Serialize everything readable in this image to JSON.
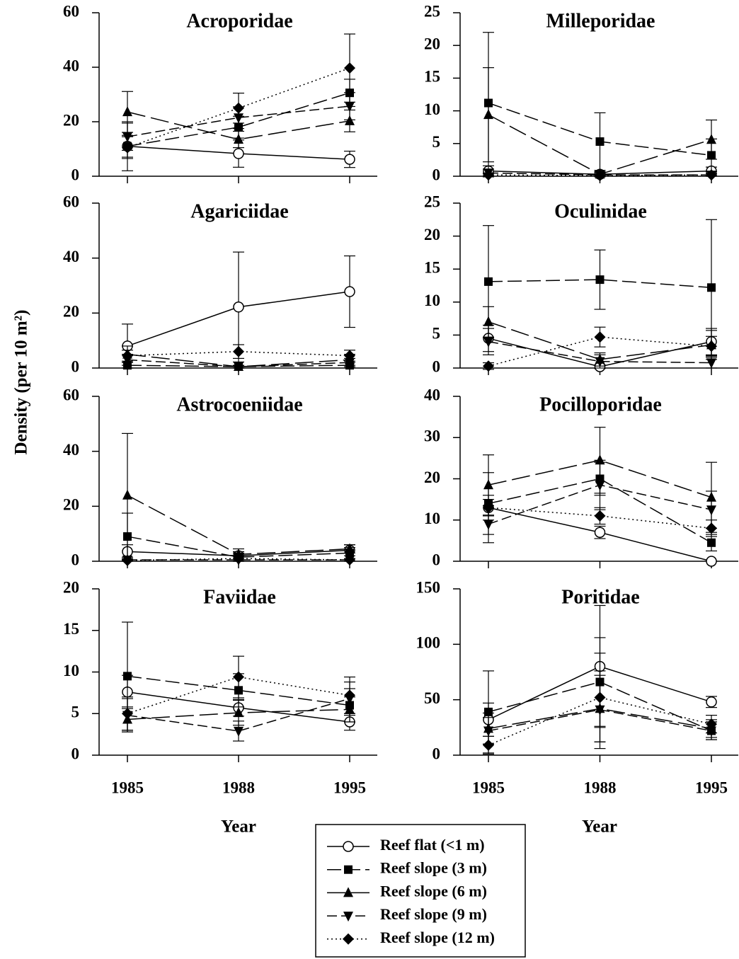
{
  "ylabel": "Density (per 10 m²)",
  "xlabel": "Year",
  "chart_data": [
    {
      "type": "line",
      "title": "Acroporidae",
      "categories": [
        "1985",
        "1988",
        "1995"
      ],
      "ylim": [
        0,
        60
      ],
      "yticks": [
        0,
        20,
        40,
        60
      ],
      "series": [
        {
          "name": "Reef flat (<1 m)",
          "color": "#000",
          "marker": "circle-open",
          "dash": "solid",
          "values": [
            11,
            8.3,
            6.2
          ],
          "errors": [
            9,
            5,
            3
          ]
        },
        {
          "name": "Reef slope (3 m)",
          "color": "#000",
          "marker": "square",
          "dash": "dash",
          "values": [
            11,
            18,
            30.6
          ],
          "errors": [
            4,
            4,
            5
          ]
        },
        {
          "name": "Reef slope (6 m)",
          "color": "#000",
          "marker": "triangle",
          "dash": "long-dash",
          "values": [
            23.6,
            13.5,
            20.3
          ],
          "errors": [
            7.5,
            3,
            4
          ]
        },
        {
          "name": "Reef slope (9 m)",
          "color": "#000",
          "marker": "triangle-down",
          "dash": "medium-dash",
          "values": [
            14.5,
            21.5,
            25.7
          ],
          "errors": [
            5,
            4,
            5
          ]
        },
        {
          "name": "Reef slope (12 m)",
          "color": "#000",
          "marker": "diamond",
          "dash": "dot",
          "values": [
            10.5,
            25,
            39.7
          ],
          "errors": [
            4,
            5.5,
            12.5
          ]
        }
      ]
    },
    {
      "type": "line",
      "title": "Milleporidae",
      "categories": [
        "1985",
        "1988",
        "1995"
      ],
      "ylim": [
        0,
        25
      ],
      "yticks": [
        0,
        5,
        10,
        15,
        20,
        25
      ],
      "series": [
        {
          "name": "Reef flat (<1 m)",
          "color": "#000",
          "marker": "circle-open",
          "dash": "solid",
          "values": [
            0.8,
            0.3,
            0.8
          ],
          "errors": [
            0.8,
            0.3,
            0.6
          ]
        },
        {
          "name": "Reef slope (3 m)",
          "color": "#000",
          "marker": "square",
          "dash": "dash",
          "values": [
            11.2,
            5.3,
            3.2
          ],
          "errors": [
            10.8,
            4.4,
            2.5
          ]
        },
        {
          "name": "Reef slope (6 m)",
          "color": "#000",
          "marker": "triangle",
          "dash": "long-dash",
          "values": [
            9.4,
            0.3,
            5.6
          ],
          "errors": [
            7.2,
            0.4,
            3
          ]
        },
        {
          "name": "Reef slope (9 m)",
          "color": "#000",
          "marker": "triangle-down",
          "dash": "medium-dash",
          "values": [
            0.5,
            0.2,
            0.2
          ],
          "errors": [
            0.6,
            0.2,
            0.2
          ]
        },
        {
          "name": "Reef slope (12 m)",
          "color": "#000",
          "marker": "diamond",
          "dash": "dot",
          "values": [
            0.2,
            0.1,
            0.2
          ],
          "errors": [
            0.3,
            0.1,
            0.2
          ]
        }
      ]
    },
    {
      "type": "line",
      "title": "Agariciidae",
      "categories": [
        "1985",
        "1988",
        "1995"
      ],
      "ylim": [
        0,
        60
      ],
      "yticks": [
        0,
        20,
        40,
        60
      ],
      "series": [
        {
          "name": "Reef flat (<1 m)",
          "color": "#000",
          "marker": "circle-open",
          "dash": "solid",
          "values": [
            8,
            22.2,
            27.8
          ],
          "errors": [
            8,
            20,
            13
          ]
        },
        {
          "name": "Reef slope (3 m)",
          "color": "#000",
          "marker": "square",
          "dash": "dash",
          "values": [
            1,
            0.5,
            1
          ],
          "errors": [
            1,
            0.5,
            1
          ]
        },
        {
          "name": "Reef slope (6 m)",
          "color": "#000",
          "marker": "triangle",
          "dash": "long-dash",
          "values": [
            5,
            0.5,
            3
          ],
          "errors": [
            3,
            0.5,
            2
          ]
        },
        {
          "name": "Reef slope (9 m)",
          "color": "#000",
          "marker": "triangle-down",
          "dash": "medium-dash",
          "values": [
            3,
            0.5,
            2
          ],
          "errors": [
            2,
            0.5,
            1.5
          ]
        },
        {
          "name": "Reef slope (12 m)",
          "color": "#000",
          "marker": "diamond",
          "dash": "dot",
          "values": [
            4.5,
            6,
            4.5
          ],
          "errors": [
            2,
            2.5,
            2
          ]
        }
      ]
    },
    {
      "type": "line",
      "title": "Oculinidae",
      "categories": [
        "1985",
        "1988",
        "1995"
      ],
      "ylim": [
        0,
        25
      ],
      "yticks": [
        0,
        5,
        10,
        15,
        20,
        25
      ],
      "series": [
        {
          "name": "Reef flat (<1 m)",
          "color": "#000",
          "marker": "circle-open",
          "dash": "solid",
          "values": [
            4.5,
            0.2,
            4
          ],
          "errors": [
            2,
            0.3,
            2
          ]
        },
        {
          "name": "Reef slope (3 m)",
          "color": "#000",
          "marker": "square",
          "dash": "dash",
          "values": [
            13.1,
            13.4,
            12.2
          ],
          "errors": [
            8.5,
            4.5,
            10.3
          ]
        },
        {
          "name": "Reef slope (6 m)",
          "color": "#000",
          "marker": "triangle",
          "dash": "long-dash",
          "values": [
            7,
            1.3,
            3.5
          ],
          "errors": [
            2.3,
            1,
            2.2
          ]
        },
        {
          "name": "Reef slope (9 m)",
          "color": "#000",
          "marker": "triangle-down",
          "dash": "medium-dash",
          "values": [
            4,
            1,
            0.8
          ],
          "errors": [
            2,
            1,
            0.8
          ]
        },
        {
          "name": "Reef slope (12 m)",
          "color": "#000",
          "marker": "diamond",
          "dash": "dot",
          "values": [
            0.3,
            4.7,
            3.3
          ],
          "errors": [
            0.5,
            1.5,
            1.5
          ]
        }
      ]
    },
    {
      "type": "line",
      "title": "Astrocoeniidae",
      "categories": [
        "1985",
        "1988",
        "1995"
      ],
      "ylim": [
        0,
        60
      ],
      "yticks": [
        0,
        20,
        40,
        60
      ],
      "series": [
        {
          "name": "Reef flat (<1 m)",
          "color": "#000",
          "marker": "circle-open",
          "dash": "solid",
          "values": [
            3.5,
            2,
            4
          ],
          "errors": [
            2.5,
            1.5,
            2
          ]
        },
        {
          "name": "Reef slope (3 m)",
          "color": "#000",
          "marker": "square",
          "dash": "dash",
          "values": [
            9,
            1.5,
            3
          ],
          "errors": [
            8.5,
            1.5,
            2
          ]
        },
        {
          "name": "Reef slope (6 m)",
          "color": "#000",
          "marker": "triangle",
          "dash": "long-dash",
          "values": [
            24,
            2.5,
            4.5
          ],
          "errors": [
            22.5,
            2,
            1.5
          ]
        },
        {
          "name": "Reef slope (9 m)",
          "color": "#000",
          "marker": "triangle-down",
          "dash": "medium-dash",
          "values": [
            0.5,
            0.5,
            0.5
          ],
          "errors": [
            0.5,
            0.5,
            0.5
          ]
        },
        {
          "name": "Reef slope (12 m)",
          "color": "#000",
          "marker": "diamond",
          "dash": "dot",
          "values": [
            0.3,
            1,
            0.5
          ],
          "errors": [
            0.3,
            1,
            0.5
          ]
        }
      ]
    },
    {
      "type": "line",
      "title": "Pocilloporidae",
      "categories": [
        "1985",
        "1988",
        "1995"
      ],
      "ylim": [
        0,
        40
      ],
      "yticks": [
        0,
        10,
        20,
        30,
        40
      ],
      "series": [
        {
          "name": "Reef flat (<1 m)",
          "color": "#000",
          "marker": "circle-open",
          "dash": "solid",
          "values": [
            13,
            7,
            0
          ],
          "errors": [
            2,
            1.5,
            0
          ]
        },
        {
          "name": "Reef slope (3 m)",
          "color": "#000",
          "marker": "square",
          "dash": "dash",
          "values": [
            14,
            20,
            4.5
          ],
          "errors": [
            7.5,
            4,
            2
          ]
        },
        {
          "name": "Reef slope (6 m)",
          "color": "#000",
          "marker": "triangle",
          "dash": "long-dash",
          "values": [
            18.5,
            24.5,
            15.5
          ],
          "errors": [
            7.3,
            8,
            8.5
          ]
        },
        {
          "name": "Reef slope (9 m)",
          "color": "#000",
          "marker": "triangle-down",
          "dash": "medium-dash",
          "values": [
            9,
            18.5,
            12.5
          ],
          "errors": [
            4.5,
            6,
            4.5
          ]
        },
        {
          "name": "Reef slope (12 m)",
          "color": "#000",
          "marker": "diamond",
          "dash": "dot",
          "values": [
            13,
            11,
            8
          ],
          "errors": [
            3,
            2,
            2
          ]
        }
      ]
    },
    {
      "type": "line",
      "title": "Faviidae",
      "categories": [
        "1985",
        "1988",
        "1995"
      ],
      "ylim": [
        0,
        20
      ],
      "yticks": [
        0,
        5,
        10,
        15,
        20
      ],
      "series": [
        {
          "name": "Reef flat (<1 m)",
          "color": "#000",
          "marker": "circle-open",
          "dash": "solid",
          "values": [
            7.6,
            5.7,
            4
          ],
          "errors": [
            2,
            1,
            1
          ]
        },
        {
          "name": "Reef slope (3 m)",
          "color": "#000",
          "marker": "square",
          "dash": "dash",
          "values": [
            9.5,
            7.8,
            6
          ],
          "errors": [
            6.5,
            2,
            2
          ]
        },
        {
          "name": "Reef slope (6 m)",
          "color": "#000",
          "marker": "triangle",
          "dash": "long-dash",
          "values": [
            4.3,
            5.1,
            5.5
          ],
          "errors": [
            1.5,
            1.5,
            1.5
          ]
        },
        {
          "name": "Reef slope (9 m)",
          "color": "#000",
          "marker": "triangle-down",
          "dash": "medium-dash",
          "values": [
            4.8,
            2.9,
            6.8
          ],
          "errors": [
            2,
            1.2,
            2
          ]
        },
        {
          "name": "Reef slope (12 m)",
          "color": "#000",
          "marker": "diamond",
          "dash": "dot",
          "values": [
            5,
            9.4,
            7.2
          ],
          "errors": [
            2,
            2.5,
            2.2
          ]
        }
      ]
    },
    {
      "type": "line",
      "title": "Poritidae",
      "categories": [
        "1985",
        "1988",
        "1995"
      ],
      "ylim": [
        0,
        150
      ],
      "yticks": [
        0,
        50,
        100,
        150
      ],
      "series": [
        {
          "name": "Reef flat (<1 m)",
          "color": "#000",
          "marker": "circle-open",
          "dash": "solid",
          "values": [
            32,
            80,
            48
          ],
          "errors": [
            15,
            55,
            5
          ]
        },
        {
          "name": "Reef slope (3 m)",
          "color": "#000",
          "marker": "square",
          "dash": "dash",
          "values": [
            39,
            66,
            22
          ],
          "errors": [
            37,
            40,
            8
          ]
        },
        {
          "name": "Reef slope (6 m)",
          "color": "#000",
          "marker": "triangle",
          "dash": "long-dash",
          "values": [
            24,
            42,
            24
          ],
          "errors": [
            14,
            30,
            8
          ]
        },
        {
          "name": "Reef slope (9 m)",
          "color": "#000",
          "marker": "triangle-down",
          "dash": "medium-dash",
          "values": [
            22,
            41,
            22
          ],
          "errors": [
            12,
            35,
            8
          ]
        },
        {
          "name": "Reef slope (12 m)",
          "color": "#000",
          "marker": "diamond",
          "dash": "dot",
          "values": [
            9,
            52,
            28
          ],
          "errors": [
            8,
            40,
            8
          ]
        }
      ]
    }
  ]
}
